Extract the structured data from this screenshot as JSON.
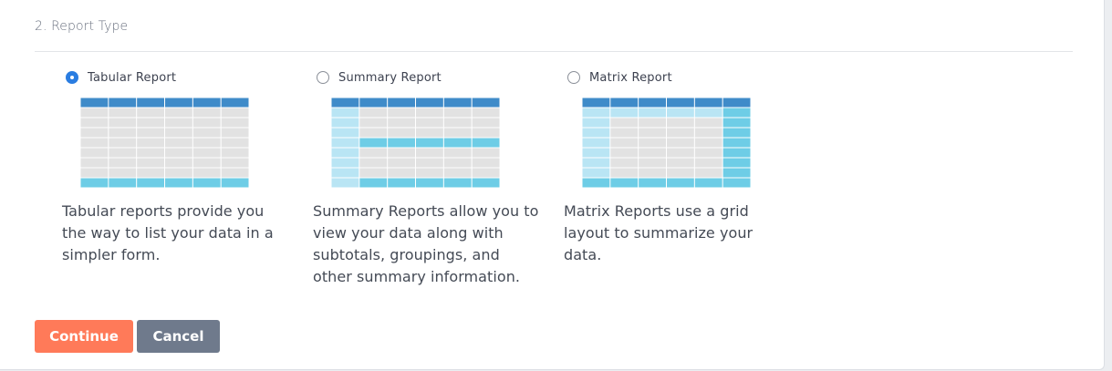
{
  "section": {
    "title": "2. Report Type"
  },
  "options": [
    {
      "label": "Tabular Report",
      "checked": true,
      "description": "Tabular reports provide you the way to list your data in a simpler form."
    },
    {
      "label": "Summary Report",
      "checked": false,
      "description": "Summary Reports allow you to view your data along with subtotals, groupings, and other summary information."
    },
    {
      "label": "Matrix Report",
      "checked": false,
      "description": "Matrix Reports use a grid layout to summarize your data."
    }
  ],
  "buttons": {
    "continue_label": "Continue",
    "cancel_label": "Cancel"
  },
  "colors": {
    "header_blue": "#3f8bc9",
    "cell_gray": "#e2e2e2",
    "cell_light_blue": "#b9e5f4",
    "cell_cyan": "#6ecde6",
    "radio_checked": "#2a7de1",
    "continue_bg": "#ff7a59",
    "cancel_bg": "#6f7a8c"
  }
}
